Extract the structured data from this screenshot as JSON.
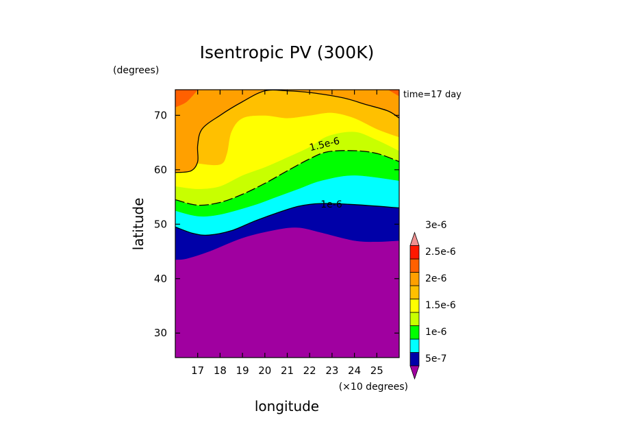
{
  "chart_data": {
    "type": "heatmap",
    "subtype": "filled-contour",
    "title": "Isentropic PV (300K)",
    "xlabel": "longitude",
    "x_unit_label": "(×10 degrees)",
    "ylabel": "latitude",
    "y_unit_label": "(degrees)",
    "annotation": "time=17 day",
    "xlim": [
      16.0,
      26.0
    ],
    "ylim": [
      25.5,
      74.7
    ],
    "xticks": [
      17,
      18,
      19,
      20,
      21,
      22,
      23,
      24,
      25
    ],
    "xtick_labels": [
      "17",
      "18",
      "19",
      "20",
      "21",
      "22",
      "23",
      "24",
      "25"
    ],
    "yticks": [
      30,
      40,
      50,
      60,
      70
    ],
    "ytick_labels": [
      "30",
      "40",
      "50",
      "60",
      "70"
    ],
    "grid": false,
    "colorbar": {
      "placement": "right",
      "levels": [
        5e-07,
        1e-06,
        1.5e-06,
        2e-06,
        2.5e-06,
        3e-06
      ],
      "labels": [
        "5e-7",
        "1e-6",
        "1.5e-6",
        "2e-6",
        "2.5e-6",
        "3e-6"
      ],
      "colors": [
        "#a000a0",
        "#0000a8",
        "#00ffff",
        "#00ff00",
        "#c8ff00",
        "#ffff00",
        "#ffc000",
        "#ffa000",
        "#ff6000",
        "#ff1800",
        "#f09090"
      ],
      "extend": "both"
    },
    "contour_lines": [
      {
        "value_label": "1.5e-6",
        "style": "dashed"
      },
      {
        "value_label": "1e-6",
        "style": "solid"
      }
    ],
    "bands": [
      {
        "color": "#a000a0",
        "boundary": [
          [
            16.0,
            34.5
          ],
          [
            17.0,
            35.5
          ],
          [
            18.5,
            38.0
          ],
          [
            19.5,
            38.8
          ],
          [
            20.5,
            38.3
          ],
          [
            21.2,
            37.0
          ],
          [
            21.0,
            35.0
          ],
          [
            20.8,
            33.0
          ],
          [
            21.5,
            31.0
          ],
          [
            23.0,
            31.5
          ],
          [
            24.5,
            34.0
          ],
          [
            26.0,
            38.5
          ]
        ]
      },
      {
        "color": "#0000a8",
        "boundary": [
          [
            16.0,
            43.5
          ],
          [
            16.5,
            43.7
          ],
          [
            17.5,
            45.0
          ],
          [
            19.0,
            47.5
          ],
          [
            20.5,
            49.0
          ],
          [
            21.5,
            49.4
          ],
          [
            22.5,
            48.5
          ],
          [
            24.0,
            47.0
          ],
          [
            25.0,
            46.8
          ],
          [
            26.0,
            47.0
          ]
        ]
      },
      {
        "color": "#00ffff",
        "boundary": [
          [
            16.0,
            49.5
          ],
          [
            16.8,
            48.3
          ],
          [
            17.5,
            48.0
          ],
          [
            18.5,
            48.8
          ],
          [
            19.5,
            50.5
          ],
          [
            20.5,
            52.0
          ],
          [
            21.5,
            53.3
          ],
          [
            22.5,
            53.8
          ],
          [
            24.0,
            53.6
          ],
          [
            26.0,
            53.0
          ]
        ]
      },
      {
        "color": "#00ff00",
        "boundary": [
          [
            16.0,
            52.5
          ],
          [
            17.0,
            51.5
          ],
          [
            18.0,
            51.8
          ],
          [
            19.5,
            53.5
          ],
          [
            20.5,
            55.0
          ],
          [
            21.5,
            56.5
          ],
          [
            22.5,
            58.0
          ],
          [
            24.0,
            59.0
          ],
          [
            26.0,
            58.0
          ]
        ]
      },
      {
        "color": "#c8ff00",
        "boundary": [
          [
            16.0,
            54.5
          ],
          [
            17.0,
            53.5
          ],
          [
            18.0,
            54.0
          ],
          [
            19.0,
            55.5
          ],
          [
            20.0,
            57.5
          ],
          [
            21.0,
            59.8
          ],
          [
            22.0,
            62.0
          ],
          [
            22.8,
            63.3
          ],
          [
            24.0,
            63.5
          ],
          [
            25.0,
            63.0
          ],
          [
            26.0,
            61.5
          ]
        ]
      },
      {
        "color": "#ffff00",
        "boundary": [
          [
            16.0,
            57.0
          ],
          [
            17.0,
            56.5
          ],
          [
            18.0,
            57.0
          ],
          [
            19.0,
            59.0
          ],
          [
            20.0,
            60.5
          ],
          [
            21.0,
            62.3
          ],
          [
            22.0,
            64.2
          ],
          [
            22.8,
            66.2
          ],
          [
            24.0,
            67.0
          ],
          [
            25.0,
            65.5
          ],
          [
            26.0,
            63.5
          ]
        ]
      },
      {
        "color": "#ffc000",
        "boundary": [
          [
            16.0,
            62.0
          ],
          [
            17.0,
            61.2
          ],
          [
            18.0,
            61.0
          ],
          [
            18.3,
            63.0
          ],
          [
            18.5,
            67.0
          ],
          [
            19.0,
            69.5
          ],
          [
            20.0,
            70.0
          ],
          [
            21.0,
            69.5
          ],
          [
            22.0,
            70.0
          ],
          [
            23.0,
            70.5
          ],
          [
            24.0,
            69.5
          ],
          [
            25.0,
            67.5
          ],
          [
            26.0,
            66.0
          ]
        ]
      },
      {
        "color": "#ffa000",
        "boundary": [
          [
            16.0,
            59.5
          ],
          [
            16.7,
            59.8
          ],
          [
            17.0,
            61.5
          ],
          [
            17.0,
            64.5
          ],
          [
            17.2,
            67.5
          ],
          [
            18.0,
            70.0
          ],
          [
            19.0,
            72.5
          ],
          [
            20.0,
            74.5
          ],
          [
            21.0,
            74.5
          ],
          [
            22.0,
            74.2
          ],
          [
            23.5,
            73.2
          ],
          [
            24.5,
            72.0
          ],
          [
            25.5,
            70.8
          ],
          [
            26.0,
            69.5
          ]
        ]
      },
      {
        "color": "#ff6000",
        "boundary": [
          [
            16.0,
            71.5
          ],
          [
            16.5,
            72.5
          ],
          [
            17.0,
            74.7
          ]
        ],
        "extra": [
          [
            25.5,
            74.7
          ],
          [
            26.0,
            73.5
          ]
        ]
      }
    ]
  }
}
